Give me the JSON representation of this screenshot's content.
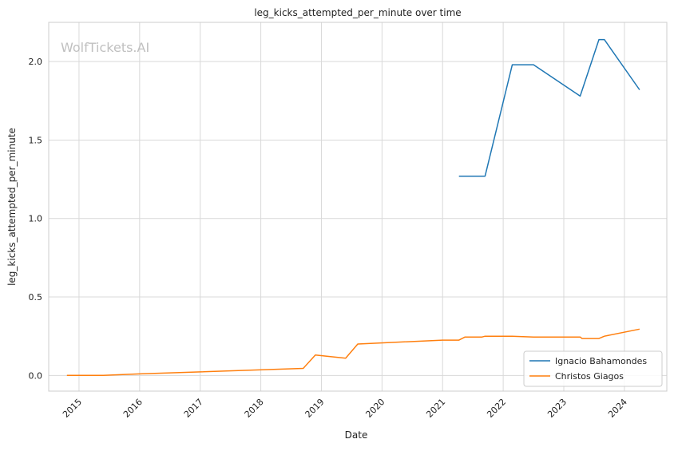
{
  "chart_data": {
    "type": "line",
    "title": "leg_kicks_attempted_per_minute over time",
    "xlabel": "Date",
    "ylabel": "leg_kicks_attempted_per_minute",
    "watermark": "WolfTickets.AI",
    "xlim": [
      2014.5,
      2024.7
    ],
    "ylim": [
      -0.1,
      2.25
    ],
    "x_ticks": [
      2015,
      2016,
      2017,
      2018,
      2019,
      2020,
      2021,
      2022,
      2023,
      2024
    ],
    "x_tick_labels": [
      "2015",
      "2016",
      "2017",
      "2018",
      "2019",
      "2020",
      "2021",
      "2022",
      "2023",
      "2024"
    ],
    "y_ticks": [
      0.0,
      0.5,
      1.0,
      1.5,
      2.0
    ],
    "y_tick_labels": [
      "0.0",
      "0.5",
      "1.0",
      "1.5",
      "2.0"
    ],
    "grid": true,
    "legend_position": "bottom-right",
    "series": [
      {
        "name": "Ignacio Bahamondes",
        "color": "#1f77b4",
        "x": [
          2021.27,
          2021.7,
          2022.15,
          2022.5,
          2023.27,
          2023.58,
          2023.67,
          2024.25
        ],
        "y": [
          1.27,
          1.27,
          1.98,
          1.98,
          1.78,
          2.14,
          2.14,
          1.82
        ]
      },
      {
        "name": "Christos Giagos",
        "color": "#ff7f0e",
        "x": [
          2014.8,
          2015.4,
          2016.0,
          2018.7,
          2018.9,
          2019.4,
          2019.6,
          2021.0,
          2021.27,
          2021.37,
          2021.65,
          2021.7,
          2022.15,
          2022.5,
          2023.27,
          2023.3,
          2023.58,
          2023.67,
          2024.25
        ],
        "y": [
          0.0,
          0.0,
          0.01,
          0.045,
          0.13,
          0.11,
          0.2,
          0.225,
          0.225,
          0.245,
          0.245,
          0.25,
          0.25,
          0.245,
          0.245,
          0.235,
          0.235,
          0.25,
          0.295
        ]
      }
    ]
  }
}
